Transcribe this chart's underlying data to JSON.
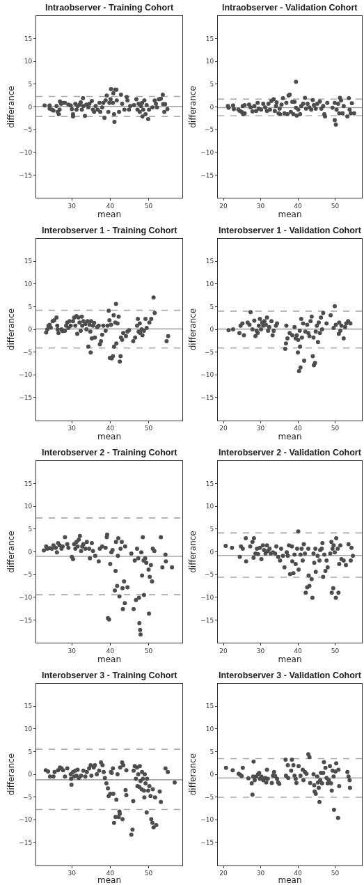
{
  "chart_data": [
    {
      "type": "scatter",
      "title": "Intraobserver - Training Cohort",
      "xlabel": "mean",
      "ylabel": "differance",
      "xlim": [
        20.7,
        58.8
      ],
      "ylim": [
        -20,
        20
      ],
      "xticks": [
        30,
        40,
        50
      ],
      "yticks": [
        -15,
        -10,
        -5,
        0,
        5,
        10,
        15
      ],
      "grid": false,
      "marker": "circle",
      "ref_lines": [
        {
          "axis": "y",
          "value": 0.1,
          "color": "#a9a9a9",
          "line_style": "solid"
        },
        {
          "axis": "y",
          "value": 2.3,
          "color": "#a9a9a9",
          "line_style": "dashed"
        },
        {
          "axis": "y",
          "value": -2.1,
          "color": "#a9a9a9",
          "line_style": "dashed"
        }
      ],
      "series": [
        {
          "color": "#4d4d4d",
          "x": [
            22.9,
            24.2,
            24.2,
            24.8,
            25.2,
            26.0,
            26.3,
            26.6,
            26.8,
            26.9,
            27.2,
            27.7,
            28.2,
            29.1,
            29.7,
            30.0,
            30.3,
            30.3,
            30.9,
            31.2,
            31.5,
            32.0,
            32.3,
            32.6,
            32.9,
            33.0,
            33.4,
            33.8,
            34.3,
            34.6,
            35.2,
            35.5,
            35.8,
            36.2,
            36.7,
            37.2,
            37.4,
            37.9,
            38.2,
            38.5,
            38.8,
            39.1,
            39.5,
            39.8,
            40.1,
            40.2,
            40.7,
            40.8,
            41.0,
            41.1,
            41.3,
            41.6,
            41.7,
            42.3,
            42.8,
            43.1,
            43.7,
            44.3,
            44.5,
            44.9,
            45.2,
            46.2,
            46.8,
            47.1,
            47.4,
            47.7,
            48.0,
            48.3,
            48.4,
            48.6,
            48.9,
            49.2,
            49.5,
            49.9,
            50.1,
            51.0,
            51.6,
            51.9,
            52.2,
            52.7,
            53.2,
            53.7,
            53.8,
            54.1,
            54.3,
            54.9
          ],
          "values": [
            0.3,
            0.3,
            -0.4,
            -0.6,
            -0.8,
            0.2,
            -1.1,
            -1.6,
            -0.6,
            1.2,
            0.7,
            0.9,
            0.9,
            0.5,
            0.3,
            -0.5,
            -1.6,
            -2.1,
            0.7,
            -0.6,
            0.2,
            0.5,
            1.0,
            -0.6,
            1.9,
            0.2,
            -2.0,
            0.5,
            -0.1,
            0.7,
            1.3,
            -0.6,
            -1.1,
            0.2,
            -0.6,
            0.9,
            -1.1,
            -0.1,
            0.9,
            -2.4,
            1.4,
            2.5,
            -1.1,
            0.9,
            1.7,
            3.9,
            0.9,
            3.0,
            -1.6,
            -3.3,
            3.8,
            3.8,
            1.4,
            -1.1,
            2.7,
            0.7,
            -0.6,
            2.2,
            1.4,
            -0.6,
            0.2,
            0.4,
            1.7,
            -0.6,
            0.7,
            -1.1,
            0.2,
            0.9,
            -2.1,
            -0.6,
            1.4,
            -1.6,
            0.4,
            -2.7,
            -0.6,
            -0.1,
            1.4,
            0.7,
            -0.1,
            1.7,
            1.8,
            2.7,
            0.6,
            -1.1,
            0.6,
            -0.5
          ]
        }
      ]
    },
    {
      "type": "scatter",
      "title": "Intraobserver - Validation Cohort",
      "xlabel": "mean",
      "ylabel": "differance",
      "xlim": [
        18.5,
        57.2
      ],
      "ylim": [
        -20,
        20
      ],
      "xticks": [
        20,
        30,
        40,
        50
      ],
      "yticks": [
        -15,
        -10,
        -5,
        0,
        5,
        10,
        15
      ],
      "grid": false,
      "marker": "circle",
      "ref_lines": [
        {
          "axis": "y",
          "value": -0.15,
          "color": "#a9a9a9",
          "line_style": "solid"
        },
        {
          "axis": "y",
          "value": 1.7,
          "color": "#a9a9a9",
          "line_style": "dashed"
        },
        {
          "axis": "y",
          "value": -1.95,
          "color": "#a9a9a9",
          "line_style": "dashed"
        }
      ],
      "series": [
        {
          "color": "#4d4d4d",
          "x": [
            21.2,
            21.4,
            22.6,
            22.8,
            24.0,
            24.4,
            24.9,
            25.2,
            25.3,
            25.7,
            25.7,
            26.9,
            27.3,
            27.8,
            28.3,
            28.8,
            29.2,
            29.5,
            30.1,
            30.7,
            31.2,
            31.7,
            32.1,
            32.5,
            32.9,
            33.5,
            33.8,
            34.1,
            34.3,
            34.8,
            35.1,
            35.2,
            35.6,
            36.0,
            36.4,
            36.9,
            37.2,
            37.5,
            37.8,
            38.1,
            38.5,
            38.8,
            39.1,
            39.5,
            39.5,
            39.7,
            40.1,
            40.6,
            40.9,
            41.4,
            41.9,
            42.2,
            42.6,
            43.1,
            43.6,
            44.0,
            44.3,
            44.8,
            45.2,
            45.9,
            46.3,
            46.8,
            47.1,
            47.3,
            47.9,
            49.3,
            49.9,
            49.9,
            50.2,
            50.4,
            50.8,
            51.1,
            51.3,
            51.6,
            52.0,
            52.3,
            53.3,
            53.7,
            53.9,
            54.2,
            54.5,
            55.1
          ],
          "values": [
            0.2,
            -0.2,
            0.3,
            -0.5,
            -0.6,
            -0.9,
            -1.1,
            0.2,
            -1.6,
            0.4,
            -1.4,
            0.5,
            -0.1,
            -1.0,
            0.2,
            -0.9,
            0.9,
            -0.4,
            -0.6,
            0.7,
            -0.1,
            -0.9,
            0.7,
            -0.6,
            1.3,
            1.7,
            -0.9,
            0.2,
            1.0,
            -1.4,
            -0.4,
            -1.6,
            0.5,
            1.9,
            -1.4,
            0.9,
            -1.6,
            2.5,
            2.7,
            -1.1,
            1.1,
            -1.6,
            1.1,
            -0.2,
            5.5,
            -1.9,
            -0.6,
            -1.6,
            0.2,
            0.7,
            2.0,
            -0.4,
            0.7,
            -0.1,
            -0.6,
            1.5,
            0.4,
            -0.4,
            0.7,
            1.2,
            -0.4,
            0.2,
            -1.6,
            -2.1,
            0.9,
            -0.2,
            0.9,
            -2.9,
            -3.9,
            -0.6,
            0.7,
            -1.4,
            2.0,
            1.4,
            -1.4,
            0.2,
            -2.1,
            1.9,
            -0.6,
            -1.4,
            0.8,
            -1.4
          ]
        }
      ]
    },
    {
      "type": "scatter",
      "title": "Interobserver 1 - Training Cohort",
      "xlabel": "mean",
      "ylabel": "differance",
      "xlim": [
        20.7,
        58.8
      ],
      "ylim": [
        -20,
        20
      ],
      "xticks": [
        30,
        40,
        50
      ],
      "yticks": [
        -15,
        -10,
        -5,
        0,
        5,
        10,
        15
      ],
      "grid": false,
      "marker": "circle",
      "ref_lines": [
        {
          "axis": "y",
          "value": 0.1,
          "color": "#a9a9a9",
          "line_style": "solid"
        },
        {
          "axis": "y",
          "value": 4.2,
          "color": "#a9a9a9",
          "line_style": "dashed"
        },
        {
          "axis": "y",
          "value": -4.1,
          "color": "#a9a9a9",
          "line_style": "dashed"
        }
      ],
      "series": [
        {
          "color": "#4d4d4d",
          "x": [
            23.3,
            23.6,
            23.9,
            24.2,
            24.5,
            25.0,
            25.4,
            26.0,
            26.2,
            26.3,
            26.5,
            27.3,
            27.6,
            28.2,
            28.5,
            28.8,
            29.1,
            29.4,
            29.7,
            30.3,
            30.6,
            30.9,
            31.2,
            31.4,
            31.7,
            32.0,
            32.3,
            32.6,
            32.7,
            33.0,
            33.5,
            33.8,
            34.1,
            34.3,
            34.6,
            34.8,
            34.9,
            35.0,
            35.2,
            35.5,
            35.8,
            36.0,
            36.6,
            37.0,
            37.3,
            37.6,
            37.9,
            38.2,
            38.8,
            39.3,
            39.6,
            39.8,
            39.9,
            40.2,
            40.4,
            40.7,
            40.9,
            41.0,
            41.3,
            41.6,
            41.5,
            41.9,
            42.2,
            42.5,
            42.7,
            42.8,
            43.1,
            43.4,
            44.1,
            44.5,
            44.9,
            46.0,
            46.5,
            47.0,
            47.2,
            47.4,
            47.7,
            47.8,
            48.2,
            48.4,
            48.8,
            49.2,
            49.5,
            50.2,
            50.7,
            51.3,
            51.6,
            54.7,
            55.1
          ],
          "values": [
            -0.7,
            0.0,
            0.8,
            1.0,
            0.4,
            1.8,
            2.0,
            2.6,
            0.8,
            0.0,
            -0.8,
            0.0,
            -0.4,
            -0.3,
            0.8,
            1.5,
            0.3,
            1.8,
            0.8,
            1.8,
            2.6,
            0.8,
            2.9,
            -1.0,
            2.6,
            1.5,
            -0.3,
            2.8,
            0.8,
            1.8,
            1.2,
            0.0,
            1.8,
            -3.8,
            1.0,
            -0.5,
            -5.1,
            1.8,
            -2.0,
            0.8,
            1.4,
            -1.8,
            0.5,
            0.8,
            -3.3,
            -2.6,
            -1.2,
            0.8,
            -0.3,
            0.8,
            4.1,
            2.0,
            -6.3,
            1.0,
            -6.4,
            -5.9,
            3.1,
            -3.8,
            1.5,
            -3.1,
            5.6,
            1.3,
            2.8,
            -7.1,
            -5.9,
            -1.8,
            -2.3,
            -0.8,
            -1.5,
            -0.5,
            -0.2,
            -2.6,
            -1.8,
            0.8,
            2.3,
            -0.5,
            1.3,
            -0.8,
            0.0,
            -1.3,
            -0.3,
            2.3,
            0.3,
            1.5,
            2.3,
            7.0,
            3.6,
            -2.6,
            -1.5
          ]
        }
      ]
    },
    {
      "type": "scatter",
      "title": "Interobserver 1 - Validation Cohort",
      "xlabel": "mean",
      "ylabel": "differance",
      "xlim": [
        18.5,
        57.2
      ],
      "ylim": [
        -20,
        20
      ],
      "xticks": [
        20,
        30,
        40,
        50
      ],
      "yticks": [
        -15,
        -10,
        -5,
        0,
        5,
        10,
        15
      ],
      "grid": false,
      "marker": "circle",
      "ref_lines": [
        {
          "axis": "y",
          "value": 0.05,
          "color": "#a9a9a9",
          "line_style": "solid"
        },
        {
          "axis": "y",
          "value": 4.0,
          "color": "#a9a9a9",
          "line_style": "dashed"
        },
        {
          "axis": "y",
          "value": -4.1,
          "color": "#a9a9a9",
          "line_style": "dashed"
        }
      ],
      "series": [
        {
          "color": "#4d4d4d",
          "x": [
            21.4,
            22.6,
            24.3,
            24.6,
            25.1,
            25.5,
            26.5,
            27.0,
            27.3,
            27.8,
            28.3,
            28.6,
            28.9,
            29.2,
            29.5,
            29.8,
            30.1,
            30.4,
            30.7,
            31.0,
            31.4,
            31.7,
            32.0,
            32.3,
            32.9,
            33.2,
            33.5,
            34.1,
            34.4,
            36.6,
            36.8,
            36.9,
            37.2,
            37.8,
            38.5,
            39.1,
            39.4,
            39.7,
            40.0,
            40.1,
            40.3,
            40.5,
            40.6,
            40.7,
            40.9,
            41.1,
            41.4,
            41.7,
            42.0,
            42.5,
            42.8,
            43.1,
            43.4,
            43.7,
            44.0,
            44.2,
            44.3,
            44.6,
            44.8,
            45.1,
            45.4,
            45.6,
            45.9,
            46.2,
            46.5,
            46.8,
            47.7,
            48.8,
            49.6,
            49.9,
            50.2,
            51.0,
            51.1,
            51.4,
            51.7,
            52.3,
            52.7,
            53.0,
            53.5,
            54.1
          ],
          "values": [
            -0.2,
            0.0,
            -0.8,
            0.8,
            1.3,
            -1.3,
            1.5,
            1.0,
            3.8,
            0.0,
            1.9,
            -1.5,
            -0.3,
            -0.8,
            0.8,
            2.3,
            0.0,
            1.5,
            0.8,
            1.8,
            1.0,
            2.6,
            -0.3,
            0.5,
            1.8,
            -1.3,
            -0.3,
            0.8,
            1.3,
            -4.3,
            -3.1,
            0.8,
            -2.0,
            -0.8,
            -1.3,
            0.5,
            -2.0,
            -1.3,
            -5.1,
            -2.3,
            -9.2,
            -0.3,
            -3.8,
            -8.4,
            2.3,
            -1.8,
            1.3,
            -6.9,
            -0.5,
            1.0,
            -0.8,
            -1.5,
            1.8,
            2.8,
            -5.9,
            -1.8,
            -7.9,
            -7.4,
            -0.5,
            0.8,
            -2.8,
            1.5,
            -0.8,
            2.6,
            0.0,
            3.6,
            1.3,
            3.1,
            0.3,
            5.1,
            1.0,
            -1.0,
            1.5,
            -0.3,
            0.8,
            -2.0,
            0.5,
            1.3,
            1.8,
            1.3
          ]
        }
      ]
    },
    {
      "type": "scatter",
      "title": "Interobserver 2 - Training Cohort",
      "xlabel": "mean",
      "ylabel": "differance",
      "xlim": [
        20.7,
        58.8
      ],
      "ylim": [
        -20,
        20
      ],
      "xticks": [
        30,
        40,
        50
      ],
      "yticks": [
        -15,
        -10,
        -5,
        0,
        5,
        10,
        15
      ],
      "grid": false,
      "marker": "circle",
      "ref_lines": [
        {
          "axis": "y",
          "value": -1.0,
          "color": "#a9a9a9",
          "line_style": "solid"
        },
        {
          "axis": "y",
          "value": 7.45,
          "color": "#a9a9a9",
          "line_style": "dashed"
        },
        {
          "axis": "y",
          "value": -9.45,
          "color": "#a9a9a9",
          "line_style": "dashed"
        }
      ],
      "series": [
        {
          "color": "#4d4d4d",
          "x": [
            22.7,
            23.3,
            23.6,
            24.2,
            24.8,
            25.2,
            25.8,
            26.1,
            26.4,
            26.8,
            27.3,
            27.6,
            28.2,
            28.8,
            29.1,
            30.0,
            30.3,
            30.6,
            30.9,
            31.2,
            31.5,
            31.8,
            32.1,
            32.4,
            32.7,
            33.0,
            33.5,
            33.9,
            34.5,
            34.7,
            35.2,
            35.5,
            36.1,
            37.0,
            37.3,
            37.9,
            38.8,
            39.1,
            39.2,
            39.4,
            39.7,
            40.0,
            40.3,
            40.6,
            41.2,
            41.4,
            41.5,
            41.8,
            42.0,
            42.1,
            42.4,
            42.7,
            43.0,
            43.2,
            43.3,
            43.6,
            43.8,
            43.9,
            44.5,
            45.5,
            46.1,
            46.4,
            46.7,
            47.0,
            47.3,
            47.5,
            47.6,
            47.8,
            47.9,
            48.1,
            48.3,
            48.5,
            48.7,
            48.8,
            49.1,
            49.4,
            50.0,
            50.1,
            50.3,
            50.6,
            50.9,
            51.1,
            51.5,
            53.2,
            53.6,
            54.4,
            54.5,
            56.1
          ],
          "values": [
            0.3,
            1.2,
            0.7,
            0.8,
            0.7,
            1.4,
            0.9,
            -0.1,
            1.9,
            1.4,
            0.7,
            1.2,
            3.2,
            1.7,
            0.9,
            -1.1,
            -1.6,
            1.7,
            0.7,
            2.2,
            1.2,
            2.7,
            3.5,
            0.2,
            1.2,
            1.7,
            0.7,
            2.2,
            0.7,
            -1.4,
            1.9,
            0.2,
            -0.9,
            -2.1,
            0.7,
            1.2,
            0.9,
            3.2,
            3.8,
            -14.6,
            -14.9,
            -2.7,
            -0.1,
            0.4,
            -8.5,
            -4.2,
            2.2,
            -7.5,
            -0.9,
            3.0,
            -9.8,
            0.7,
            2.2,
            -8.0,
            -12.6,
            -6.5,
            -11.3,
            1.2,
            -7.8,
            -0.4,
            -12.6,
            -1.9,
            -10.6,
            0.7,
            -1.4,
            -10.1,
            -15.7,
            -17.2,
            -18.2,
            -0.1,
            -5.2,
            3.2,
            -1.9,
            -9.5,
            -1.4,
            -2.4,
            -3.9,
            -13.6,
            -5.5,
            -2.9,
            -6.5,
            0.7,
            0.2,
            3.2,
            -3.4,
            -0.6,
            -2.1,
            -3.4
          ]
        }
      ]
    },
    {
      "type": "scatter",
      "title": "Interobserver 2 - Validation Cohort",
      "xlabel": "mean",
      "ylabel": "differance",
      "xlim": [
        18.5,
        57.2
      ],
      "ylim": [
        -20,
        20
      ],
      "xticks": [
        20,
        30,
        40,
        50
      ],
      "yticks": [
        -15,
        -10,
        -5,
        0,
        5,
        10,
        15
      ],
      "grid": false,
      "marker": "circle",
      "ref_lines": [
        {
          "axis": "y",
          "value": -0.8,
          "color": "#a9a9a9",
          "line_style": "solid"
        },
        {
          "axis": "y",
          "value": 4.15,
          "color": "#a9a9a9",
          "line_style": "dashed"
        },
        {
          "axis": "y",
          "value": -5.6,
          "color": "#a9a9a9",
          "line_style": "dashed"
        }
      ],
      "series": [
        {
          "color": "#4d4d4d",
          "x": [
            20.6,
            22.3,
            24.4,
            24.7,
            25.2,
            26.0,
            26.1,
            27.2,
            27.8,
            28.1,
            28.2,
            28.6,
            29.0,
            29.3,
            29.8,
            30.2,
            30.6,
            30.9,
            31.3,
            31.7,
            31.9,
            32.4,
            32.7,
            33.3,
            33.9,
            34.2,
            34.7,
            35.2,
            35.5,
            36.0,
            36.4,
            37.0,
            37.3,
            37.6,
            37.9,
            38.4,
            38.5,
            38.8,
            39.1,
            39.4,
            39.8,
            40.1,
            40.2,
            40.7,
            41.0,
            41.3,
            41.6,
            41.9,
            42.1,
            42.5,
            42.8,
            42.9,
            43.1,
            43.7,
            43.9,
            44.2,
            44.4,
            44.7,
            44.8,
            45.3,
            45.8,
            46.0,
            46.4,
            46.6,
            46.8,
            47.1,
            47.4,
            47.7,
            48.0,
            48.7,
            49.0,
            49.1,
            49.3,
            49.5,
            49.6,
            49.9,
            50.2,
            50.3,
            50.7,
            50.9,
            51.1,
            51.4,
            51.7,
            52.3,
            52.9,
            53.6,
            54.2,
            54.4,
            54.8
          ],
          "values": [
            1.3,
            0.9,
            -1.1,
            1.2,
            0.7,
            3.0,
            -2.1,
            1.2,
            2.2,
            -1.3,
            3.0,
            -0.4,
            0.7,
            -0.5,
            0.9,
            -1.6,
            1.4,
            0.4,
            -0.4,
            1.4,
            0.2,
            0.7,
            -0.4,
            -0.1,
            -0.4,
            1.2,
            -1.1,
            -1.9,
            0.7,
            -0.9,
            -3.4,
            -0.1,
            -0.9,
            1.4,
            -4.9,
            1.2,
            -2.1,
            -4.7,
            -0.6,
            -2.7,
            0.7,
            4.5,
            -3.9,
            -0.6,
            0.7,
            -1.9,
            1.7,
            -0.4,
            -9.0,
            -7.8,
            0.7,
            -5.2,
            -7.5,
            -6.0,
            -10.1,
            -0.4,
            -2.4,
            0.7,
            -4.4,
            -0.9,
            -1.9,
            0.4,
            0.7,
            1.9,
            -5.5,
            -0.6,
            -4.2,
            -1.9,
            -3.4,
            -0.4,
            2.2,
            -9.0,
            0.7,
            -8.0,
            1.4,
            -0.1,
            -10.1,
            3.0,
            0.7,
            -9.0,
            -2.7,
            1.4,
            -1.6,
            -1.9,
            -2.9,
            1.7,
            -1.9,
            0.9,
            -0.9
          ]
        }
      ]
    },
    {
      "type": "scatter",
      "title": "Interobserver 3 - Training Cohort",
      "xlabel": "mean",
      "ylabel": "differance",
      "xlim": [
        20.7,
        58.8
      ],
      "ylim": [
        -20,
        20
      ],
      "xticks": [
        30,
        40,
        50
      ],
      "yticks": [
        -15,
        -10,
        -5,
        0,
        5,
        10,
        15
      ],
      "grid": false,
      "marker": "circle",
      "ref_lines": [
        {
          "axis": "y",
          "value": -1.2,
          "color": "#a9a9a9",
          "line_style": "solid"
        },
        {
          "axis": "y",
          "value": 5.5,
          "color": "#a9a9a9",
          "line_style": "dashed"
        },
        {
          "axis": "y",
          "value": -7.75,
          "color": "#a9a9a9",
          "line_style": "dashed"
        }
      ],
      "series": [
        {
          "color": "#4d4d4d",
          "x": [
            23.2,
            23.8,
            24.3,
            25.2,
            25.5,
            26.4,
            26.9,
            27.3,
            27.7,
            28.2,
            28.8,
            29.7,
            29.8,
            29.9,
            30.3,
            30.6,
            30.9,
            31.2,
            31.5,
            31.8,
            32.4,
            33.0,
            33.5,
            33.9,
            34.5,
            34.9,
            35.1,
            35.7,
            36.0,
            36.5,
            37.1,
            37.6,
            38.0,
            38.3,
            38.6,
            39.0,
            39.4,
            39.6,
            40.0,
            40.2,
            40.4,
            40.7,
            40.8,
            41.0,
            41.4,
            41.6,
            41.9,
            42.2,
            42.4,
            42.5,
            42.6,
            43.1,
            43.2,
            43.4,
            44.0,
            44.2,
            44.2,
            45.5,
            45.8,
            46.0,
            46.1,
            46.4,
            46.7,
            47.0,
            47.1,
            47.3,
            47.6,
            47.7,
            47.9,
            48.2,
            48.3,
            48.5,
            48.8,
            48.9,
            49.0,
            49.2,
            49.5,
            49.6,
            49.9,
            50.2,
            50.5,
            50.7,
            51.0,
            51.1,
            51.3,
            51.7,
            52.0,
            52.9,
            53.2,
            54.4,
            55.0,
            56.8
          ],
          "values": [
            0.9,
            0.6,
            -0.5,
            -0.5,
            0.5,
            0.9,
            1.5,
            1.3,
            0.9,
            -0.5,
            1.3,
            0.0,
            -1.0,
            -2.3,
            0.5,
            -0.5,
            0.8,
            -0.3,
            1.0,
            -0.8,
            -0.3,
            0.8,
            -0.5,
            0.5,
            1.3,
            2.0,
            -0.3,
            1.5,
            2.0,
            0.0,
            0.8,
            2.6,
            2.0,
            0.5,
            -0.8,
            -2.0,
            -3.1,
            -4.8,
            -4.3,
            0.5,
            0.3,
            1.3,
            -4.3,
            -10.7,
            -9.4,
            -5.6,
            0.0,
            -9.4,
            -8.2,
            -8.7,
            1.5,
            2.6,
            -9.9,
            2.0,
            -3.5,
            -4.6,
            0.9,
            -13.3,
            -12.2,
            -5.9,
            0.8,
            1.8,
            -1.0,
            1.5,
            -2.6,
            0.0,
            -2.8,
            1.8,
            -1.5,
            -3.3,
            0.5,
            -1.0,
            -3.6,
            -5.1,
            0.0,
            -2.0,
            -8.4,
            -1.0,
            -3.6,
            -2.6,
            -4.8,
            -9.9,
            -10.7,
            -3.3,
            -11.7,
            -5.1,
            -11.2,
            -3.8,
            -6.1,
            1.3,
            0.5,
            -1.8
          ]
        }
      ]
    },
    {
      "type": "scatter",
      "title": "Interobserver 3 - Validation Cohort",
      "xlabel": "mean",
      "ylabel": "differance",
      "xlim": [
        18.5,
        57.2
      ],
      "ylim": [
        -20,
        20
      ],
      "xticks": [
        20,
        30,
        40,
        50
      ],
      "yticks": [
        -15,
        -10,
        -5,
        0,
        5,
        10,
        15
      ],
      "grid": false,
      "marker": "circle",
      "ref_lines": [
        {
          "axis": "y",
          "value": -0.8,
          "color": "#a9a9a9",
          "line_style": "solid"
        },
        {
          "axis": "y",
          "value": 3.45,
          "color": "#a9a9a9",
          "line_style": "dashed"
        },
        {
          "axis": "y",
          "value": -5.05,
          "color": "#a9a9a9",
          "line_style": "dashed"
        }
      ],
      "series": [
        {
          "color": "#4d4d4d",
          "x": [
            20.7,
            22.5,
            24.1,
            24.5,
            24.9,
            25.2,
            26.7,
            27.6,
            27.8,
            28.0,
            28.1,
            28.4,
            28.8,
            29.3,
            29.6,
            29.8,
            30.2,
            30.7,
            31.2,
            31.5,
            31.7,
            31.9,
            33.0,
            33.3,
            33.6,
            33.9,
            34.4,
            34.7,
            35.0,
            36.7,
            36.8,
            37.3,
            37.4,
            38.2,
            38.4,
            38.8,
            39.1,
            39.4,
            39.6,
            40.2,
            40.7,
            41.3,
            41.5,
            41.9,
            42.3,
            42.8,
            43.1,
            43.3,
            44.2,
            44.4,
            44.5,
            44.8,
            45.2,
            45.4,
            45.6,
            45.8,
            46.0,
            46.2,
            46.5,
            46.8,
            47.0,
            47.4,
            47.7,
            48.0,
            48.3,
            48.6,
            48.9,
            49.1,
            49.3,
            49.6,
            49.7,
            50.1,
            50.3,
            50.8,
            50.9,
            51.1,
            53.3,
            53.6,
            53.9,
            54.0
          ],
          "values": [
            1.4,
            0.9,
            0.1,
            -0.1,
            -0.4,
            1.4,
            -0.9,
            -2.0,
            -4.5,
            -0.5,
            2.8,
            -1.3,
            -0.5,
            0.0,
            0.3,
            -1.0,
            -0.5,
            -1.3,
            -0.8,
            -1.8,
            1.0,
            -1.0,
            -1.9,
            -0.3,
            0.5,
            -0.4,
            -1.0,
            -1.8,
            -2.1,
            3.2,
            -0.3,
            2.0,
            -0.8,
            0.8,
            3.2,
            2.0,
            -0.3,
            -1.0,
            -1.9,
            1.8,
            -0.3,
            1.0,
            -1.3,
            0.5,
            0.1,
            4.4,
            3.8,
            -1.9,
            0.0,
            -2.4,
            -3.8,
            -4.3,
            -0.5,
            -1.8,
            -3.0,
            -6.1,
            -1.3,
            0.3,
            -2.0,
            0.3,
            2.7,
            1.4,
            -0.8,
            -2.0,
            -1.3,
            1.8,
            -2.0,
            -3.6,
            0.8,
            -0.5,
            -7.8,
            0.6,
            2.4,
            -9.6,
            1.0,
            -2.6,
            0.5,
            -0.5,
            -1.3,
            -3.0
          ]
        }
      ]
    }
  ]
}
